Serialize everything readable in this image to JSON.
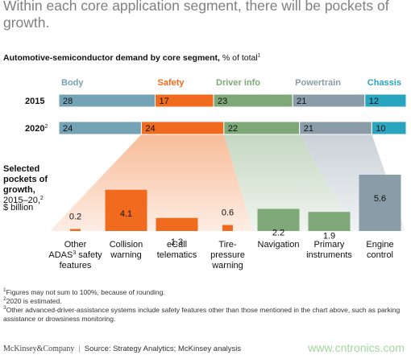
{
  "headline": "Within each core application segment, there will be pockets of growth.",
  "subtitle": {
    "bold": "Automotive-semiconductor demand by core segment,",
    "rest": " % of total",
    "sup": "1"
  },
  "colors": {
    "Body": "#74a3b6",
    "Safety": "#f06b1d",
    "Driver info": "#7fa878",
    "Powertrain": "#8a9ca8",
    "Chassis": "#2aa5c0"
  },
  "pockets_label": {
    "line1": "Selected",
    "line2": "pockets of",
    "line3": "growth,",
    "line4": "2015–20,",
    "line4_sup": "2",
    "line5": "$ billion"
  },
  "chart_data": [
    {
      "type": "bar",
      "orientation": "horizontal-stacked",
      "stacking": "percent",
      "categories": [
        "2015",
        "2020"
      ],
      "category_sups": [
        "",
        "2"
      ],
      "series": [
        {
          "name": "Body",
          "values": [
            28,
            24
          ]
        },
        {
          "name": "Safety",
          "values": [
            17,
            24
          ]
        },
        {
          "name": "Driver info",
          "values": [
            23,
            22
          ]
        },
        {
          "name": "Powertrain",
          "values": [
            21,
            21
          ]
        },
        {
          "name": "Chassis",
          "values": [
            12,
            10
          ]
        }
      ],
      "legend": "top"
    },
    {
      "type": "bar",
      "categories": [
        {
          "lines": [
            "Other",
            "ADAS",
            "features"
          ],
          "sup_line": 1,
          "sup": "3",
          "after_sup": " safety",
          "segment": "Safety"
        },
        {
          "lines": [
            "Collision",
            "warning"
          ],
          "segment": "Safety"
        },
        {
          "lines": [
            "eCall",
            "telematics"
          ],
          "segment": "Safety"
        },
        {
          "lines": [
            "Tire-",
            "pressure",
            "warning"
          ],
          "segment": "Safety"
        },
        {
          "lines": [
            "Navigation"
          ],
          "segment": "Driver info"
        },
        {
          "lines": [
            "Primary",
            "instruments"
          ],
          "segment": "Driver info"
        },
        {
          "lines": [
            "Engine",
            "control"
          ],
          "segment": "Powertrain"
        }
      ],
      "values": [
        0.2,
        4.1,
        1.3,
        0.6,
        2.2,
        1.9,
        5.6
      ],
      "value_labels": [
        "0.2",
        "4.1",
        "1.3",
        "0.6",
        "2.2",
        "1.9",
        "5.6"
      ],
      "ylabel": "$ billion"
    }
  ],
  "footnotes": [
    {
      "sup": "1",
      "text": "Figures may not sum to 100%, because of rounding."
    },
    {
      "sup": "2",
      "text": "2020 is estimated."
    },
    {
      "sup": "3",
      "text": "Other advanced-driver-assistance systems include safety features other than those mentioned in the chart above, such as parking assistance or drowsiness monitoring."
    }
  ],
  "footer": {
    "brand": "McKinsey&Company",
    "source": "Source: Strategy Analytics; McKinsey analysis"
  },
  "watermark": "www.cntronics.com"
}
